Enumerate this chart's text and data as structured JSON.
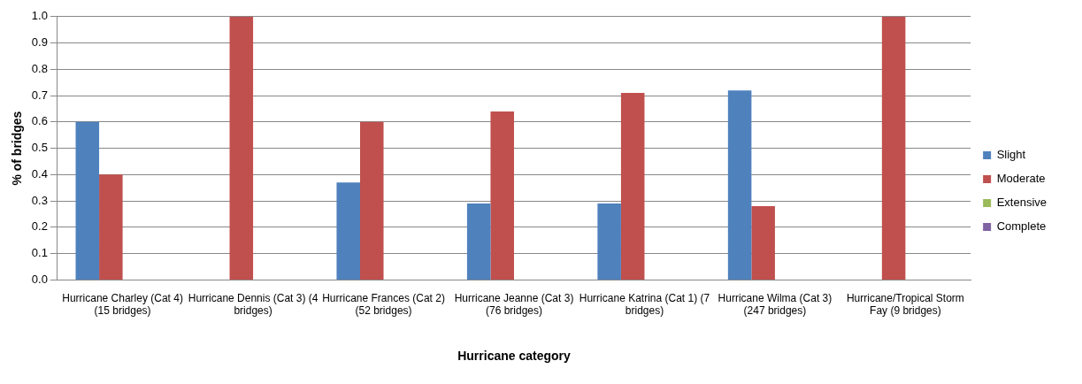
{
  "chart_data": {
    "type": "bar",
    "xlabel": "Hurricane category",
    "ylabel": "% of bridges",
    "categories": [
      "Hurricane Charley (Cat 4) (15 bridges)",
      "Hurricane Dennis (Cat 3) (4 bridges)",
      "Hurricane Frances (Cat 2) (52 bridges)",
      "Hurricane Jeanne (Cat 3) (76 bridges)",
      "Hurricane Katrina (Cat 1) (7 bridges)",
      "Hurricane Wilma (Cat 3) (247 bridges)",
      "Hurricane/Tropical Storm Fay (9 bridges)"
    ],
    "series": [
      {
        "name": "Slight",
        "color": "#4f81bd",
        "values": [
          0.6,
          0,
          0.37,
          0.29,
          0.29,
          0.72,
          0
        ]
      },
      {
        "name": "Moderate",
        "color": "#c0504d",
        "values": [
          0.4,
          1.0,
          0.6,
          0.64,
          0.71,
          0.28,
          1.0
        ]
      },
      {
        "name": "Extensive",
        "color": "#9bbb59",
        "values": [
          0,
          0,
          0,
          0,
          0,
          0,
          0
        ]
      },
      {
        "name": "Complete",
        "color": "#8064a2",
        "values": [
          0,
          0,
          0,
          0,
          0,
          0,
          0
        ]
      }
    ],
    "ylim": [
      0,
      1
    ],
    "yticks": [
      {
        "value": 0,
        "label": "0.0"
      },
      {
        "value": 0.1,
        "label": "0.1"
      },
      {
        "value": 0.2,
        "label": "0.2"
      },
      {
        "value": 0.3,
        "label": "0.3"
      },
      {
        "value": 0.4,
        "label": "0.4"
      },
      {
        "value": 0.5,
        "label": "0.5"
      },
      {
        "value": 0.6,
        "label": "0.6"
      },
      {
        "value": 0.7,
        "label": "0.7"
      },
      {
        "value": 0.8,
        "label": "0.8"
      },
      {
        "value": 0.9,
        "label": "0.9"
      },
      {
        "value": 1,
        "label": "1.0"
      }
    ],
    "grid": "y",
    "legend": "right"
  }
}
